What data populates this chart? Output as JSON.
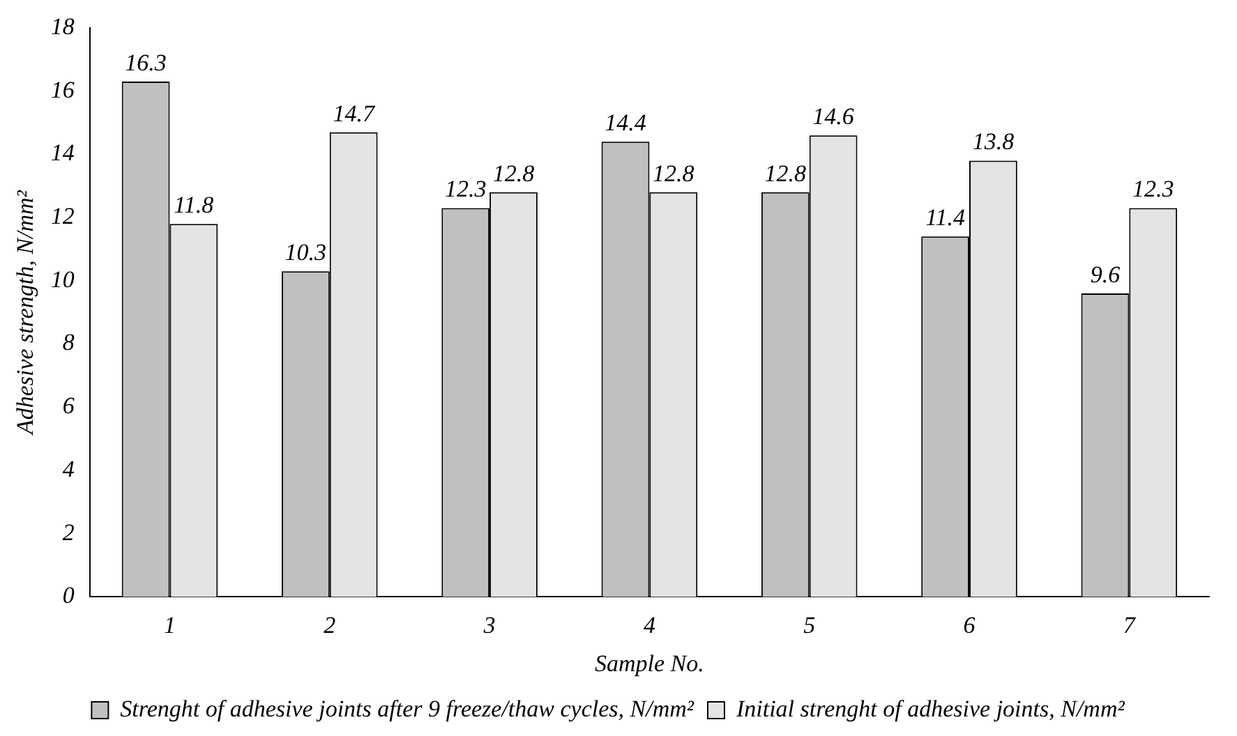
{
  "chart_data": {
    "type": "bar",
    "xlabel": "Sample No.",
    "ylabel": "Adhesive strength, N/mm²",
    "categories": [
      "1",
      "2",
      "3",
      "4",
      "5",
      "6",
      "7"
    ],
    "series": [
      {
        "name": "Strenght of adhesive joints after 9 freeze/thaw cycles, N/mm²",
        "color": "#c0c0c0",
        "values": [
          16.3,
          10.3,
          12.3,
          14.4,
          12.8,
          11.4,
          9.6
        ]
      },
      {
        "name": "Initial strenght of adhesive joints, N/mm²",
        "color": "#e4e4e4",
        "values": [
          11.8,
          14.7,
          12.8,
          12.8,
          14.6,
          13.8,
          12.3
        ]
      }
    ],
    "ylim": [
      0,
      18
    ],
    "yticks": [
      0,
      2,
      4,
      6,
      8,
      10,
      12,
      14,
      16,
      18
    ],
    "grid": false,
    "legend": "bottom",
    "data_labels": true
  }
}
